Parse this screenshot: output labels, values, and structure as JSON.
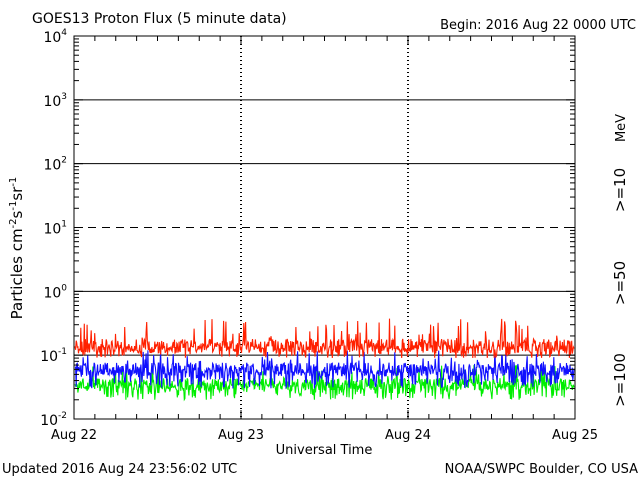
{
  "header": {
    "title": "GOES13 Proton Flux (5 minute data)",
    "begin": "Begin: 2016 Aug 22 0000 UTC"
  },
  "footer": {
    "updated": "Updated 2016 Aug 24 23:56:02 UTC",
    "source": "NOAA/SWPC Boulder, CO USA"
  },
  "colors": {
    "ge10": "#ff2000",
    "ge50": "#1010ff",
    "ge100": "#00ee00",
    "axes": "#000000"
  },
  "chart_data": {
    "type": "line",
    "title": "GOES13 Proton Flux (5 minute data)",
    "xlabel": "Universal Time",
    "ylabel": "Particles cm⁻²s⁻¹sr⁻¹",
    "yscale": "log",
    "ylim": [
      0.01,
      10000
    ],
    "ytick_labels": [
      {
        "base": "10",
        "exp": "-2"
      },
      {
        "base": "10",
        "exp": "-1"
      },
      {
        "base": "10",
        "exp": "0"
      },
      {
        "base": "10",
        "exp": "1"
      },
      {
        "base": "10",
        "exp": "2"
      },
      {
        "base": "10",
        "exp": "3"
      },
      {
        "base": "10",
        "exp": "4"
      }
    ],
    "xlim": [
      "2016-08-22",
      "2016-08-25"
    ],
    "xtick_labels": [
      "Aug 22",
      "Aug 23",
      "Aug 24",
      "Aug 25"
    ],
    "reference_lines": [
      {
        "value": 1000,
        "style": "solid"
      },
      {
        "value": 100,
        "style": "solid"
      },
      {
        "value": 10,
        "style": "dashed"
      },
      {
        "value": 1,
        "style": "solid"
      },
      {
        "value": 0.1,
        "style": "solid"
      }
    ],
    "day_dividers": [
      "2016-08-23",
      "2016-08-24"
    ],
    "unit_label": "MeV",
    "series": [
      {
        "name": ">=10",
        "color": "#ff2000",
        "typical": 0.14,
        "min": 0.09,
        "max": 0.38
      },
      {
        "name": ">=50",
        "color": "#1010ff",
        "typical": 0.06,
        "min": 0.03,
        "max": 0.12
      },
      {
        "name": ">=100",
        "color": "#00ee00",
        "typical": 0.035,
        "min": 0.02,
        "max": 0.07
      }
    ]
  }
}
